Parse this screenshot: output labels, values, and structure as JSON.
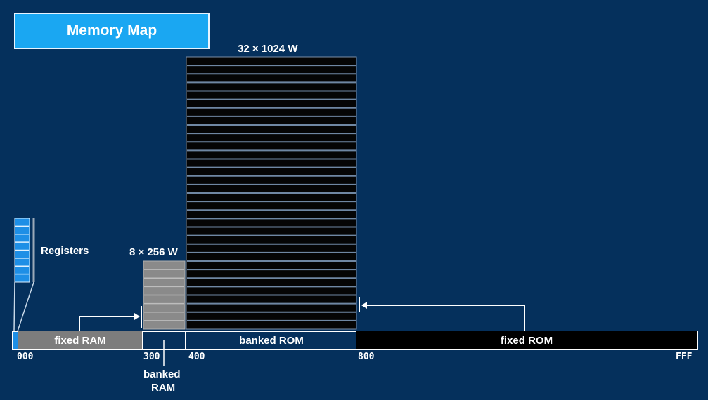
{
  "title": "Memory Map",
  "rom_bank_label": "32 × 1024 W",
  "ram_bank_label": "8 × 256 W",
  "registers_label": "Registers",
  "segments": {
    "fixed_ram": "fixed RAM",
    "banked_rom": "banked ROM",
    "fixed_rom": "fixed ROM"
  },
  "addresses": {
    "a000": "000",
    "a300": "300",
    "a400": "400",
    "a800": "800",
    "afff": "FFF"
  },
  "banked_ram_label": [
    "banked",
    "RAM"
  ],
  "colors": {
    "background": "#05305c",
    "title_box": "#1aa7f2",
    "rom_bank": "#050505",
    "ram_bank": "#8a8a8a",
    "register": "#1e8fe6"
  }
}
